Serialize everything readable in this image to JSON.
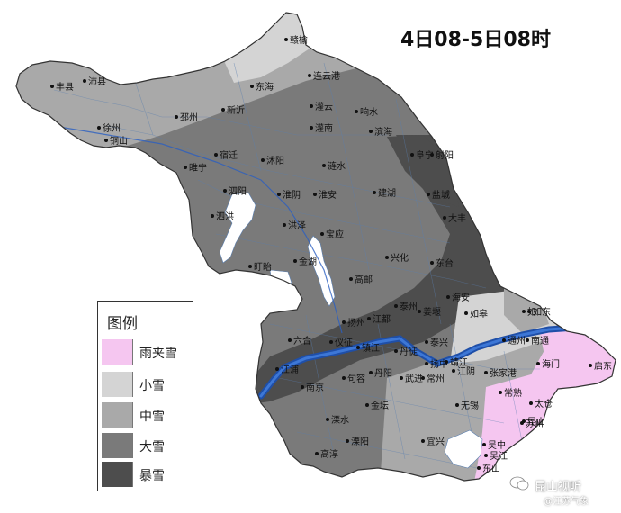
{
  "title": "4日08-5日08时",
  "legend": {
    "title": "图例",
    "items": [
      {
        "label": "雨夹雪",
        "color": "#f5c6f0"
      },
      {
        "label": "小雪",
        "color": "#d4d4d4"
      },
      {
        "label": "中雪",
        "color": "#a9a9a9"
      },
      {
        "label": "大雪",
        "color": "#7a7a7a"
      },
      {
        "label": "暴雪",
        "color": "#4d4d4d"
      }
    ]
  },
  "cities": [
    "丰县",
    "沛县",
    "赣榆",
    "东海",
    "连云港",
    "灌云",
    "响水",
    "徐州",
    "邳州",
    "新沂",
    "铜山",
    "睢宁",
    "宿迁",
    "沭阳",
    "灌南",
    "滨海",
    "阜宁",
    "射阳",
    "泗阳",
    "涟水",
    "泗洪",
    "淮阴",
    "淮安",
    "建湖",
    "盐城",
    "盱眙",
    "洪泽",
    "宝应",
    "兴化",
    "大丰",
    "金湖",
    "高邮",
    "东台",
    "六合",
    "仪征",
    "扬州",
    "江都",
    "泰州",
    "姜堰",
    "海安",
    "如皋",
    "如东",
    "南通",
    "海门",
    "启东",
    "南京",
    "江浦",
    "镇江",
    "丹阳",
    "武进",
    "常州",
    "江阴",
    "张家港",
    "常熟",
    "太仓",
    "无锡",
    "金坛",
    "溧阳",
    "宜兴",
    "苏州",
    "昆山",
    "吴中",
    "吴江",
    "东山",
    "高淳",
    "溧水",
    "句容",
    "丹徒",
    "扬中",
    "泰兴",
    "靖江",
    "通州",
    "如"
  ],
  "watermark": {
    "line1": "昆山视听",
    "line2": "@江苏气象"
  }
}
